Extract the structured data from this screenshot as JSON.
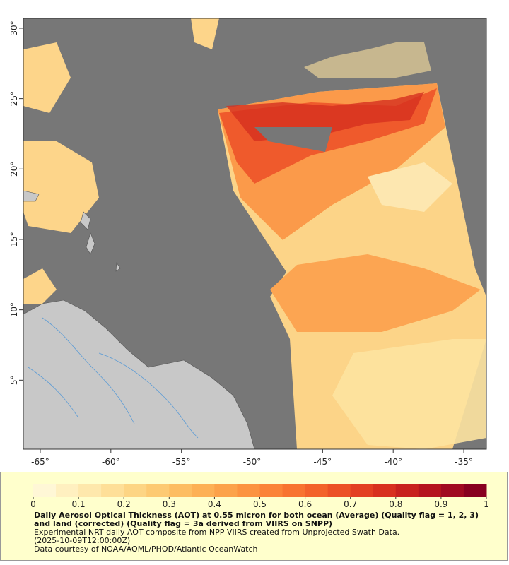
{
  "map": {
    "xlim": [
      -66.2,
      -33.4
    ],
    "ylim": [
      0.1,
      30.7
    ],
    "xticks": [
      {
        "value": -65,
        "label": "-65°"
      },
      {
        "value": -60,
        "label": "-60°"
      },
      {
        "value": -55,
        "label": "-55°"
      },
      {
        "value": -50,
        "label": "-50°"
      },
      {
        "value": -45,
        "label": "-45°"
      },
      {
        "value": -40,
        "label": "-40°"
      },
      {
        "value": -35,
        "label": "-35°"
      }
    ],
    "yticks": [
      {
        "value": 5,
        "label": "5°"
      },
      {
        "value": 10,
        "label": "10°"
      },
      {
        "value": 15,
        "label": "15°"
      },
      {
        "value": 20,
        "label": "20°"
      },
      {
        "value": 25,
        "label": "25°"
      },
      {
        "value": 30,
        "label": "30°"
      }
    ]
  },
  "colorbar": {
    "lim": [
      0,
      1
    ],
    "ticks": [
      0,
      0.1,
      0.2,
      0.3,
      0.4,
      0.5,
      0.6,
      0.7,
      0.8,
      0.9,
      1
    ],
    "colors": [
      "#fff7d6",
      "#fff0c0",
      "#fee8ac",
      "#fedf98",
      "#fdd584",
      "#fdca72",
      "#fdbd62",
      "#fdb055",
      "#fca24a",
      "#fc9340",
      "#fb8338",
      "#f87330",
      "#f3622a",
      "#ec5026",
      "#e33f22",
      "#d8301f",
      "#c8211e",
      "#b5141f",
      "#a00a21",
      "#880020"
    ]
  },
  "caption": {
    "title": "Daily Aerosol Optical Thickness (AOT) at 0.55 micron for both ocean (Average) (Quality flag = 1, 2, 3) and land (corrected) (Quality flag = 3a derived from VIIRS on SNPP)",
    "lines": [
      "Experimental NRT daily AOT composite from NPP VIIRS created from Unprojected Swath Data.",
      "(2025-10-09T12:00:00Z)",
      "Data courtesy of NOAA/AOML/PHOD/Atlantic OceanWatch"
    ]
  }
}
